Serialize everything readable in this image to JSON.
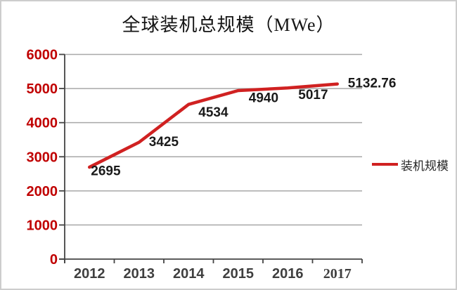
{
  "chart_data": {
    "type": "line",
    "title": "全球装机总规模（MWe）",
    "categories": [
      "2012",
      "2013",
      "2014",
      "2015",
      "2016",
      "2017"
    ],
    "series": [
      {
        "name": "装机规模",
        "values": [
          2695,
          3425,
          4534,
          4940,
          5017,
          5132.76
        ],
        "data_labels": [
          "2695",
          "3425",
          "4534",
          "4940",
          "5017",
          "5132.76"
        ]
      }
    ],
    "xlabel": "",
    "ylabel": "",
    "ylim": [
      0,
      6000
    ],
    "y_ticks": [
      0,
      1000,
      2000,
      3000,
      4000,
      5000,
      6000
    ],
    "grid": true,
    "legend_position": "right",
    "colors": {
      "line": "#d02121",
      "y_tick_labels": "#c00000",
      "x_tick_labels": "#3f3f3f",
      "data_labels": "#1a1a1a",
      "gridline": "#a8a8a8",
      "axis": "#444444"
    }
  }
}
